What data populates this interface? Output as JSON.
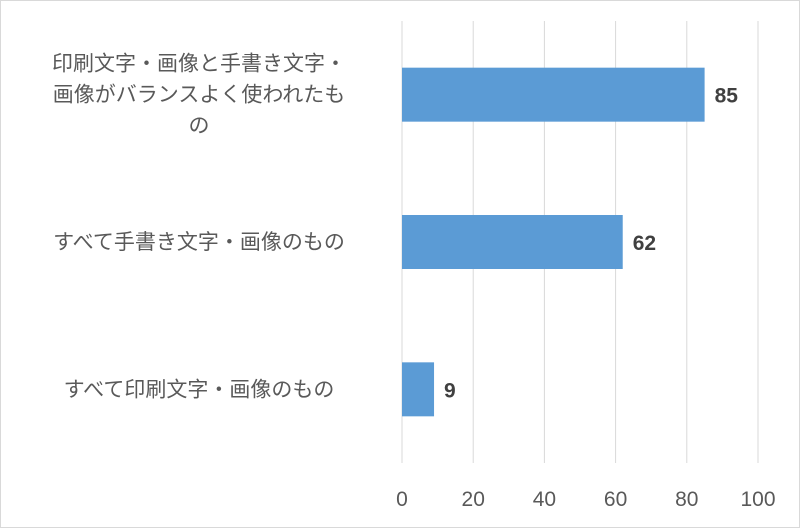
{
  "chart_data": {
    "type": "bar",
    "orientation": "horizontal",
    "title": "",
    "xlabel": "",
    "ylabel": "",
    "xlim": [
      0,
      100
    ],
    "ticks": [
      "0",
      "20",
      "40",
      "60",
      "80",
      "100"
    ],
    "grid": true,
    "bar_color": "#5b9bd5",
    "categories": [
      [
        "印刷文字・画像と手書き文字・",
        "画像がバランスよく使われたも",
        "の"
      ],
      [
        "すべて手書き文字・画像のもの"
      ],
      [
        "すべて印刷文字・画像のもの"
      ]
    ],
    "values": [
      85,
      62,
      9
    ],
    "data_labels": [
      "85",
      "62",
      "9"
    ]
  }
}
